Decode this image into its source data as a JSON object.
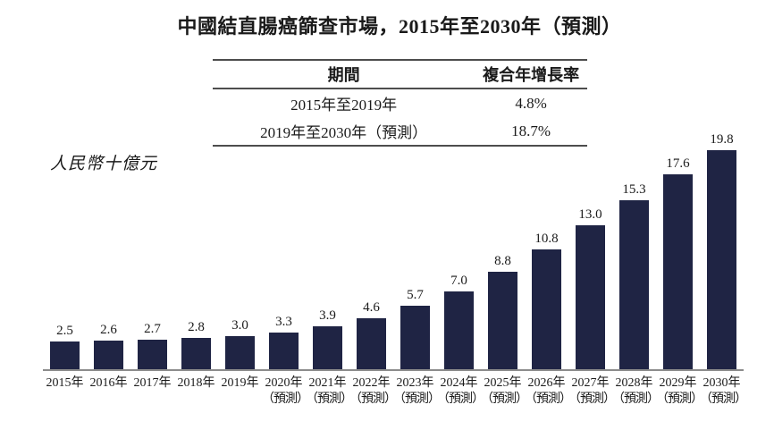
{
  "title": "中國結直腸癌篩查市場，2015年至2030年（預測）",
  "unit_label": "人民幣十億元",
  "cagr_table": {
    "headers": {
      "period": "期間",
      "cagr": "複合年增長率"
    },
    "rows": [
      {
        "period": "2015年至2019年",
        "cagr": "4.8%"
      },
      {
        "period": "2019年至2030年（預測）",
        "cagr": "18.7%"
      }
    ]
  },
  "chart_data": {
    "type": "bar",
    "title": "中國結直腸癌篩查市場，2015年至2030年（預測）",
    "ylabel": "人民幣十億元",
    "categories": [
      "2015年",
      "2016年",
      "2017年",
      "2018年",
      "2019年",
      "2020年",
      "2021年",
      "2022年",
      "2023年",
      "2024年",
      "2025年",
      "2026年",
      "2027年",
      "2028年",
      "2029年",
      "2030年"
    ],
    "category_notes": [
      "",
      "",
      "",
      "",
      "",
      "（預測）",
      "（預測）",
      "（預測）",
      "（預測）",
      "（預測）",
      "（預測）",
      "（預測）",
      "（預測）",
      "（預測）",
      "（預測）",
      "（預測）"
    ],
    "values": [
      2.5,
      2.6,
      2.7,
      2.8,
      3.0,
      3.3,
      3.9,
      4.6,
      5.7,
      7.0,
      8.8,
      10.8,
      13.0,
      15.3,
      17.6,
      19.8
    ],
    "value_labels": [
      "2.5",
      "2.6",
      "2.7",
      "2.8",
      "3.0",
      "3.3",
      "3.9",
      "4.6",
      "5.7",
      "7.0",
      "8.8",
      "10.8",
      "13.0",
      "15.3",
      "17.6",
      "19.8"
    ],
    "ylim": [
      0,
      20
    ],
    "grid": false,
    "legend": "none",
    "bar_color": "#1f2444",
    "axis_color": "#8c8c8c"
  }
}
